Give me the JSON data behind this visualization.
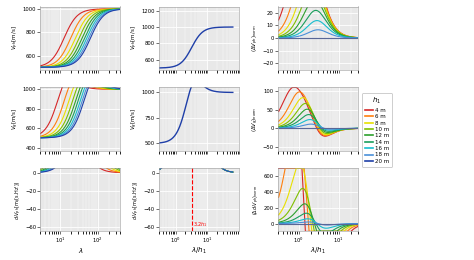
{
  "h1_values": [
    4,
    6,
    8,
    10,
    12,
    14,
    16,
    18,
    20
  ],
  "colors": [
    "#d62728",
    "#ff7f0e",
    "#e8e000",
    "#7fbf00",
    "#2ca02c",
    "#1a9e5c",
    "#17becf",
    "#4a90d9",
    "#1f3fa8"
  ],
  "V2": 1000,
  "V1": 500,
  "legend_labels": [
    "4 m",
    "6 m",
    "8 m",
    "10 m",
    "12 m",
    "14 m",
    "16 m",
    "18 m",
    "20 m"
  ],
  "bg_color": "#e8e8e8",
  "grid_color": "#ffffff",
  "note_3p2": "3.2h₁"
}
